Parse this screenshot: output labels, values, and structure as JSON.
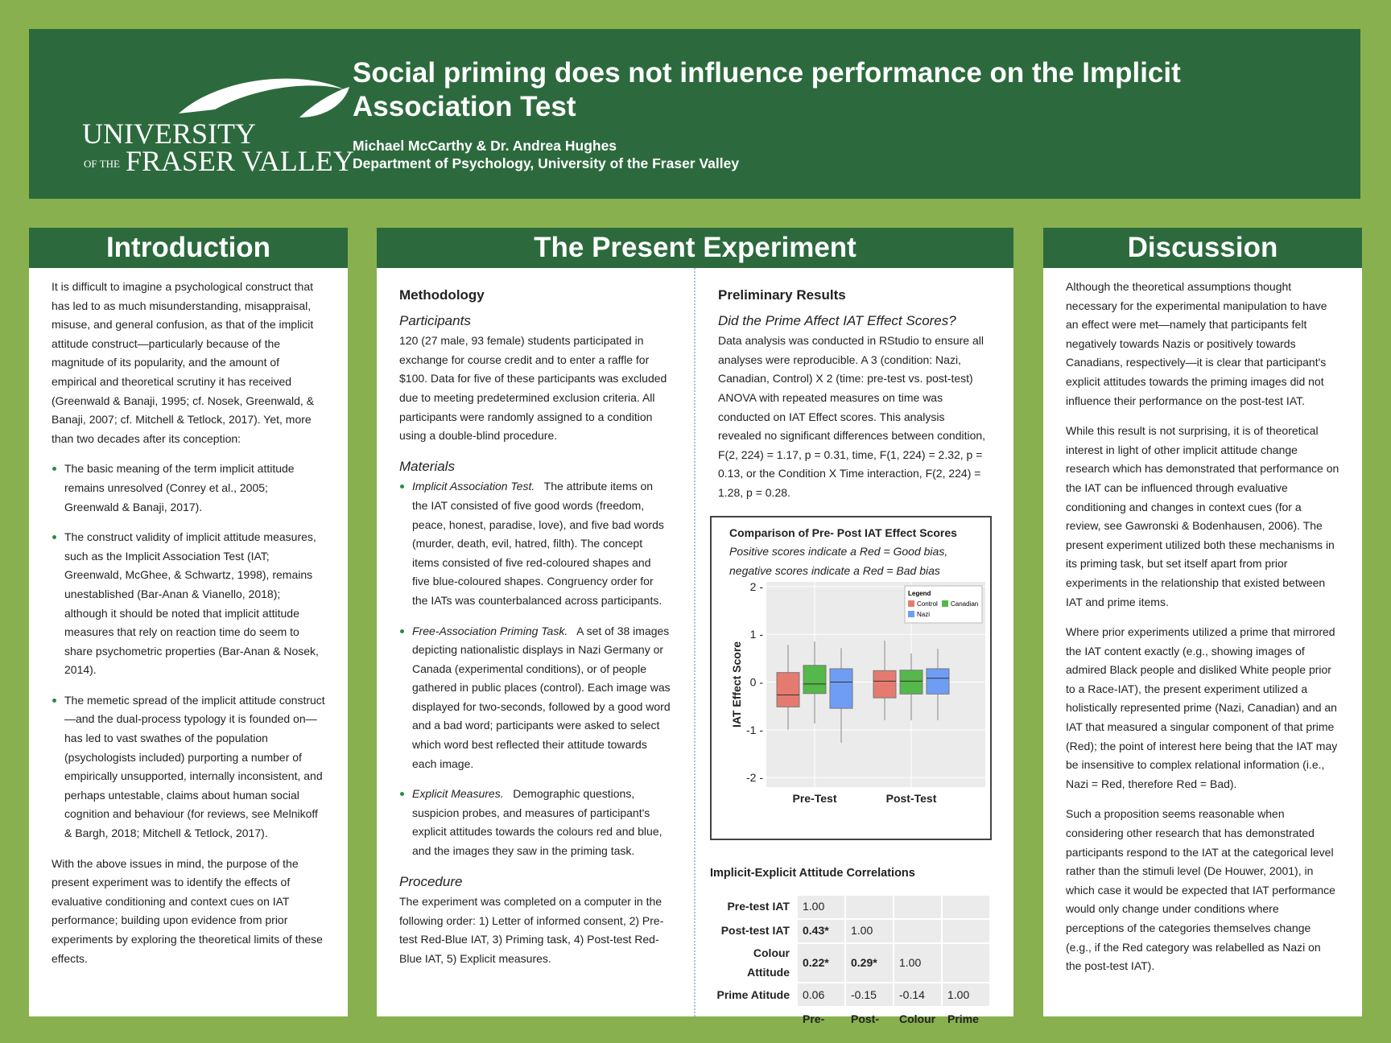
{
  "header": {
    "logo_text": "University of the Fraser Valley",
    "logo_line1": "UNIVERSITY",
    "logo_of_the": "OF THE",
    "logo_line2": "FRASER VALLEY",
    "title": "Social priming does not influence performance on the Implicit Association Test",
    "authors": "Michael McCarthy & Dr. Andrea Hughes",
    "department": "Department of Psychology, University of the Fraser Valley"
  },
  "intro": {
    "heading": "Introduction",
    "p1": "It is difficult to imagine a psychological construct that has led to as much misunderstanding, misappraisal, misuse, and general confusion, as that of the implicit attitude construct—particularly because of the magnitude of its popularity, and the amount of empirical and theoretical scrutiny it has received (Greenwald & Banaji, 1995; cf. Nosek, Greenwald, & Banaji, 2007; cf. Mitchell & Tetlock, 2017). Yet, more than two decades after its conception:",
    "bullets": [
      "The basic meaning of the term implicit attitude remains unresolved (Conrey et al., 2005; Greenwald & Banaji, 2017).",
      "The construct validity of implicit attitude measures, such as the Implicit Association Test (IAT; Greenwald, McGhee, & Schwartz, 1998), remains unestablished (Bar-Anan & Vianello, 2018); although it should be noted that implicit attitude measures that rely on reaction time do seem to share psychometric properties (Bar-Anan & Nosek, 2014).",
      "The memetic spread of the implicit attitude construct—and the dual-process typology it is founded on—has led to vast swathes of the population (psychologists included) purporting a number of empirically unsupported, internally inconsistent, and perhaps untestable, claims about human social cognition and behaviour (for reviews, see Melnikoff & Bargh, 2018; Mitchell & Tetlock, 2017)."
    ],
    "p2": "With the above issues in mind, the purpose of the present experiment was to identify the effects of evaluative conditioning and context cues on IAT performance; building upon evidence from prior experiments by exploring the theoretical limits of these effects."
  },
  "experiment": {
    "heading": "The Present Experiment",
    "methodology": "Methodology",
    "participants_h": "Participants",
    "participants": "120 (27 male, 93 female) students participated in exchange for course credit and to enter a raffle for $100. Data for five of these participants was excluded due to meeting predetermined exclusion criteria. All participants were randomly assigned to a condition using a double-blind procedure.",
    "materials_h": "Materials",
    "materials": [
      {
        "lead": "Implicit Association Test.",
        "text": "The attribute items on the IAT consisted of five good words (freedom, peace, honest, paradise, love), and five bad words (murder, death, evil, hatred, filth). The concept items consisted of five red-coloured shapes and five blue-coloured shapes. Congruency order for the IATs was counterbalanced across participants."
      },
      {
        "lead": "Free-Association Priming Task.",
        "text": "A set of 38 images depicting nationalistic displays in Nazi Germany or Canada (experimental conditions), or of people gathered in public places (control). Each image was displayed for two-seconds, followed by a good word and a bad word; participants were asked to select which word best reflected their attitude towards each image."
      },
      {
        "lead": "Explicit Measures.",
        "text": "Demographic questions, suspicion probes, and measures of participant's explicit attitudes towards the colours red and blue, and the images they saw in the priming task."
      }
    ],
    "procedure_h": "Procedure",
    "procedure": "The experiment was completed on a computer in the following order: 1) Letter of informed consent, 2) Pre-test Red-Blue IAT, 3) Priming task, 4) Post-test Red-Blue IAT, 5) Explicit measures.",
    "results_h": "Preliminary Results",
    "results_q": "Did the Prime Affect IAT Effect Scores?",
    "results": "Data analysis was conducted in RStudio to ensure all analyses were reproducible. A 3 (condition: Nazi, Canadian, Control) X 2 (time: pre-test vs. post-test) ANOVA with repeated measures on time was conducted on IAT Effect scores. This analysis revealed no significant differences between condition, F(2, 224) = 1.17, p = 0.31, time, F(1, 224) = 2.32, p = 0.13, or the Condition X Time interaction, F(2, 224) = 1.28, p = 0.28.",
    "corr_title": "Implicit-Explicit Attitude Correlations",
    "corr_rows": [
      {
        "label": "Pre-test IAT",
        "cells": [
          "1.00",
          "",
          "",
          ""
        ]
      },
      {
        "label": "Post-test IAT",
        "cells": [
          "0.43*",
          "1.00",
          "",
          ""
        ]
      },
      {
        "label": "Colour Attitude",
        "cells": [
          "0.22*",
          "0.29*",
          "1.00",
          ""
        ]
      },
      {
        "label": "Prime Atitude",
        "cells": [
          "0.06",
          "-0.15",
          "-0.14",
          "1.00"
        ]
      }
    ],
    "corr_cols": [
      "Pre-",
      "Post-",
      "Colour",
      "Prime"
    ]
  },
  "chart_data": {
    "type": "boxplot",
    "title": "Comparison of Pre- Post IAT Effect Scores",
    "subtitle1": "Positive scores indicate a Red = Good bias,",
    "subtitle2": "negative scores indicate a Red = Bad bias",
    "ylabel": "IAT Effect Score",
    "ylim": [
      -2.2,
      2.1
    ],
    "yticks": [
      "2",
      "1",
      "0",
      "-1",
      "-2"
    ],
    "categories": [
      "Pre-Test",
      "Post-Test"
    ],
    "legend": {
      "title": "Legend",
      "placement": "top-right"
    },
    "series": [
      {
        "name": "Control",
        "color": "#e57b70",
        "boxes": [
          {
            "min": -1.0,
            "q1": -0.52,
            "median": -0.27,
            "q3": 0.2,
            "max": 0.78
          },
          {
            "min": -0.8,
            "q1": -0.33,
            "median": 0.02,
            "q3": 0.24,
            "max": 0.87
          }
        ]
      },
      {
        "name": "Canadian",
        "color": "#55b84a",
        "boxes": [
          {
            "min": -0.87,
            "q1": -0.24,
            "median": -0.04,
            "q3": 0.35,
            "max": 0.85
          },
          {
            "min": -0.8,
            "q1": -0.25,
            "median": 0.02,
            "q3": 0.25,
            "max": 0.6
          }
        ]
      },
      {
        "name": "Nazi",
        "color": "#6f9df5",
        "boxes": [
          {
            "min": -1.27,
            "q1": -0.55,
            "median": 0.0,
            "q3": 0.28,
            "max": 0.71
          },
          {
            "min": -0.8,
            "q1": -0.25,
            "median": 0.08,
            "q3": 0.28,
            "max": 0.7
          }
        ]
      }
    ]
  },
  "discussion": {
    "heading": "Discussion",
    "paragraphs": [
      "Although the theoretical assumptions thought necessary for the experimental manipulation to have an effect were met—namely that participants felt negatively towards Nazis or positively towards Canadians, respectively—it is clear that participant's explicit attitudes towards the priming images did not influence their performance on the post-test IAT.",
      "While this result is not surprising, it is of theoretical interest in light of other implicit attitude change research which has demonstrated that performance on the IAT can be influenced through evaluative conditioning and changes in context cues (for a review, see Gawronski & Bodenhausen, 2006). The present experiment utilized both these mechanisms in its priming task, but set itself apart from prior experiments in the relationship that existed between IAT and prime items.",
      "Where prior experiments utilized a prime that mirrored the IAT content exactly (e.g., showing images of admired Black people and disliked White people prior to a Race-IAT), the present experiment utilized a holistically represented prime (Nazi, Canadian) and an IAT that measured a singular component of that prime (Red); the point of interest here being that the IAT may be insensitive to complex relational information (i.e., Nazi = Red, therefore Red = Bad).",
      "Such a proposition seems reasonable when considering other research that has demonstrated participants respond to the IAT at the categorical level rather than the stimuli level (De Houwer, 2001), in which case it would be expected that IAT performance would only change under conditions where perceptions of the categories themselves change (e.g., if the Red category was relabelled as Nazi on the post-test IAT)."
    ]
  }
}
